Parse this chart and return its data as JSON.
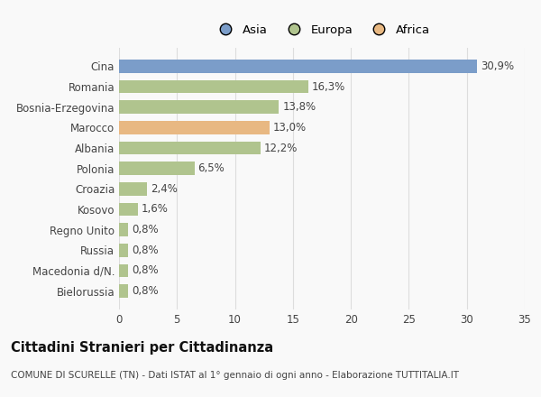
{
  "countries": [
    "Cina",
    "Romania",
    "Bosnia-Erzegovina",
    "Marocco",
    "Albania",
    "Polonia",
    "Croazia",
    "Kosovo",
    "Regno Unito",
    "Russia",
    "Macedonia d/N.",
    "Bielorussia"
  ],
  "values": [
    30.9,
    16.3,
    13.8,
    13.0,
    12.2,
    6.5,
    2.4,
    1.6,
    0.8,
    0.8,
    0.8,
    0.8
  ],
  "labels": [
    "30,9%",
    "16,3%",
    "13,8%",
    "13,0%",
    "12,2%",
    "6,5%",
    "2,4%",
    "1,6%",
    "0,8%",
    "0,8%",
    "0,8%",
    "0,8%"
  ],
  "colors": [
    "#7b9dc9",
    "#b0c48e",
    "#b0c48e",
    "#e8b882",
    "#b0c48e",
    "#b0c48e",
    "#b0c48e",
    "#b0c48e",
    "#b0c48e",
    "#b0c48e",
    "#b0c48e",
    "#b0c48e"
  ],
  "legend_labels": [
    "Asia",
    "Europa",
    "Africa"
  ],
  "legend_colors": [
    "#7b9dc9",
    "#b0c48e",
    "#e8b882"
  ],
  "title": "Cittadini Stranieri per Cittadinanza",
  "subtitle": "COMUNE DI SCURELLE (TN) - Dati ISTAT al 1° gennaio di ogni anno - Elaborazione TUTTITALIA.IT",
  "xlim": [
    0,
    35
  ],
  "xticks": [
    0,
    5,
    10,
    15,
    20,
    25,
    30,
    35
  ],
  "background_color": "#f9f9f9",
  "grid_color": "#dddddd",
  "bar_height": 0.65,
  "label_fontsize": 8.5,
  "tick_fontsize": 8.5,
  "title_fontsize": 10.5,
  "subtitle_fontsize": 7.5
}
